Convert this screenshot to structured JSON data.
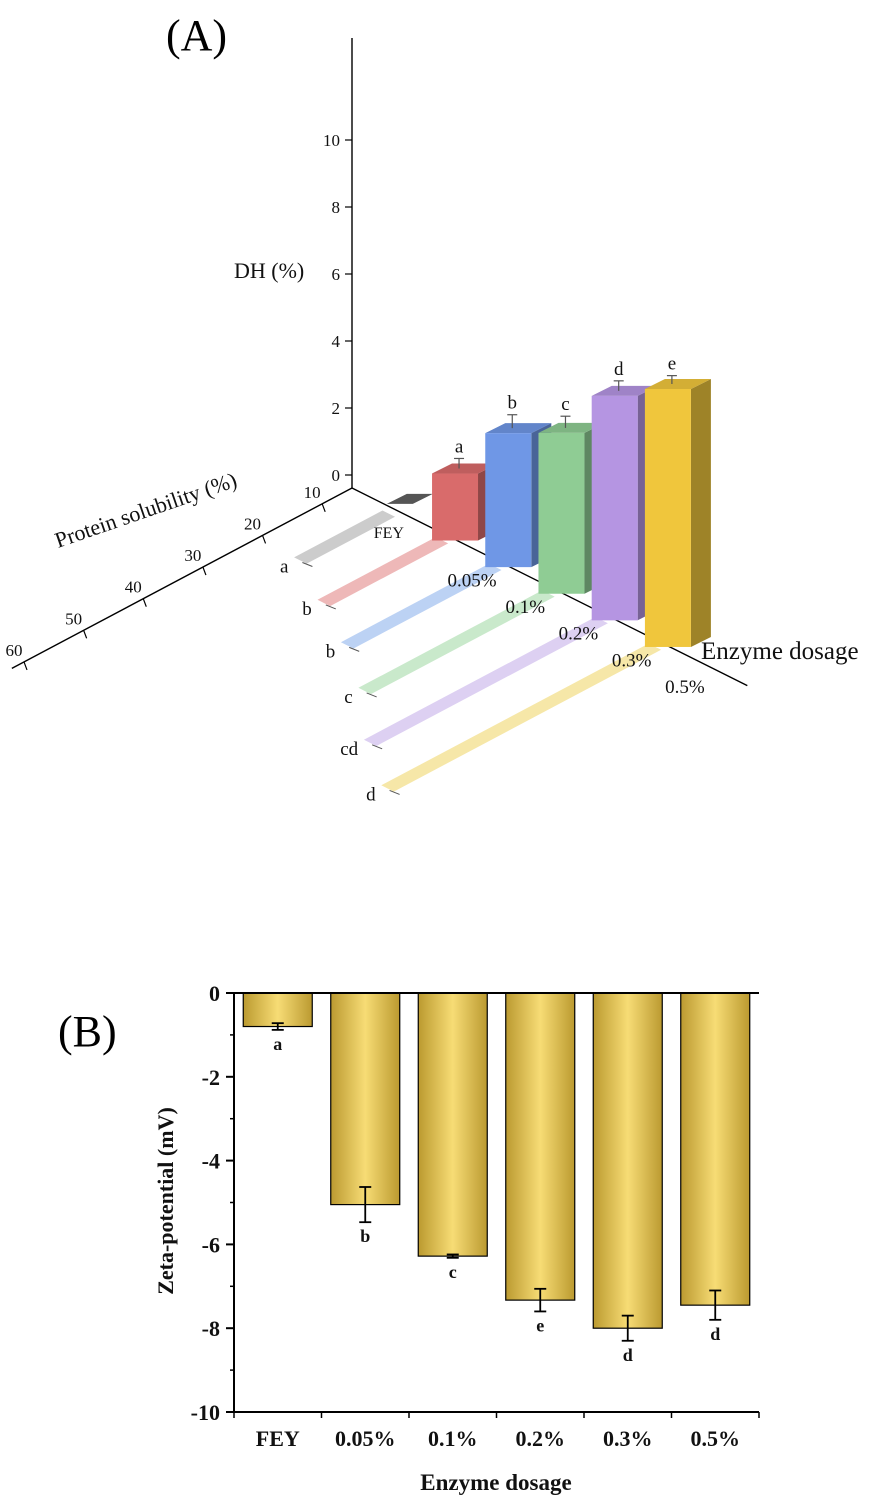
{
  "chart_data": [
    {
      "panel": "(A)",
      "type": "bar",
      "categories": [
        "FEY",
        "0.05%",
        "0.1%",
        "0.2%",
        "0.3%",
        "0.5%"
      ],
      "xlabel": "Enzyme dosage",
      "series": [
        {
          "name": "DH (%)",
          "values": [
            0.0,
            2.0,
            4.0,
            4.8,
            6.7,
            7.7
          ],
          "errors": [
            0.0,
            0.3,
            0.4,
            0.35,
            0.3,
            0.25
          ],
          "letters": [
            "",
            "a",
            "b",
            "c",
            "d",
            "e"
          ],
          "colors": [
            "#555555",
            "#d96b6b",
            "#6f97e6",
            "#8fcc94",
            "#b595e2",
            "#f0c63c"
          ]
        },
        {
          "name": "Protein solubility (%)",
          "values": [
            21,
            26,
            31,
            37,
            45,
            51
          ],
          "letters": [
            "a",
            "b",
            "b",
            "c",
            "cd",
            "d"
          ],
          "colors": [
            "#cccccc",
            "#eeb8b8",
            "#bcd2f4",
            "#c9e9cb",
            "#ddd0f2",
            "#f6e7a8"
          ]
        }
      ],
      "dh_ticks": [
        "0",
        "2",
        "4",
        "6",
        "8",
        "10"
      ],
      "dh_range": [
        0,
        10
      ],
      "solubility_ticks": [
        "10",
        "20",
        "30",
        "40",
        "50",
        "60"
      ],
      "solubility_range": [
        10,
        60
      ]
    },
    {
      "panel": "(B)",
      "type": "bar",
      "categories": [
        "FEY",
        "0.05%",
        "0.1%",
        "0.2%",
        "0.3%",
        "0.5%"
      ],
      "values": [
        -0.8,
        -5.05,
        -6.28,
        -7.33,
        -8.0,
        -7.45
      ],
      "errors": [
        0.08,
        0.42,
        0.04,
        0.27,
        0.3,
        0.35
      ],
      "letters": [
        "a",
        "b",
        "c",
        "e",
        "d",
        "d"
      ],
      "xlabel": "Enzyme dosage",
      "ylabel": "Zeta-potential (mV)",
      "yticks": [
        "0",
        "-2",
        "-4",
        "-6",
        "-8",
        "-10"
      ],
      "ylim": [
        -10,
        0
      ],
      "bar_color": "#e2bf45"
    }
  ]
}
